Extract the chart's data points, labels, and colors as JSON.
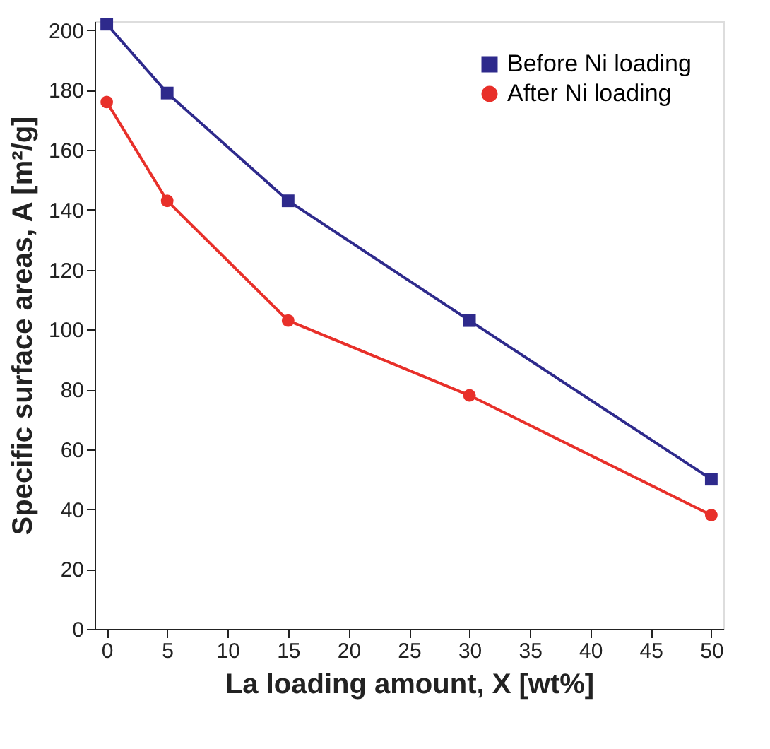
{
  "chart_data": {
    "type": "line",
    "xlabel": "La loading amount, X [wt%]",
    "ylabel": "Specific surface areas, A [m²/g]",
    "x": [
      0,
      5,
      15,
      30,
      50
    ],
    "series": [
      {
        "name": "Before Ni loading",
        "color": "#2e2a8c",
        "marker": "square",
        "values": [
          202,
          179,
          143,
          103,
          50
        ]
      },
      {
        "name": "After Ni loading",
        "color": "#e8302a",
        "marker": "circle",
        "values": [
          176,
          143,
          103,
          78,
          38
        ]
      }
    ],
    "xlim": [
      -1,
      51
    ],
    "xticks": [
      0,
      5,
      10,
      15,
      20,
      25,
      30,
      35,
      40,
      45,
      50
    ],
    "ylim": [
      0,
      203
    ],
    "yticks": [
      0,
      20,
      40,
      60,
      80,
      100,
      120,
      140,
      160,
      180,
      200
    ],
    "grid": false,
    "legend": "top right",
    "line_style": "solid"
  }
}
